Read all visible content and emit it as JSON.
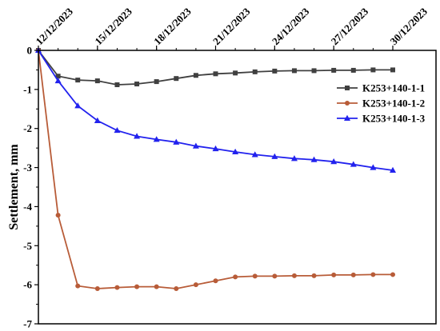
{
  "chart_data": {
    "type": "line",
    "title": "",
    "xlabel": "",
    "ylabel": "Settlement, mm",
    "x_ticks": [
      "12/12/2023",
      "15/12/2023",
      "18/12/2023",
      "21/12/2023",
      "24/12/2023",
      "27/12/2023",
      "30/12/2023"
    ],
    "x_range": [
      "12/12/2023",
      "30/12/2023"
    ],
    "ylim": [
      -7,
      0
    ],
    "y_ticks": [
      0,
      -1,
      -2,
      -3,
      -4,
      -5,
      -6,
      -7
    ],
    "grid": false,
    "legend_position": "top-right",
    "x": [
      "12/12/2023",
      "13/12/2023",
      "14/12/2023",
      "15/12/2023",
      "16/12/2023",
      "17/12/2023",
      "18/12/2023",
      "19/12/2023",
      "20/12/2023",
      "21/12/2023",
      "22/12/2023",
      "23/12/2023",
      "24/12/2023",
      "25/12/2023",
      "26/12/2023",
      "27/12/2023",
      "28/12/2023",
      "29/12/2023",
      "30/12/2023"
    ],
    "series": [
      {
        "name": "K253+140-1-1",
        "color": "#404040",
        "marker": "square",
        "values": [
          0,
          -0.66,
          -0.76,
          -0.78,
          -0.88,
          -0.86,
          -0.8,
          -0.72,
          -0.64,
          -0.6,
          -0.58,
          -0.55,
          -0.53,
          -0.52,
          -0.52,
          -0.51,
          -0.51,
          -0.5,
          -0.5
        ]
      },
      {
        "name": "K253+140-1-2",
        "color": "#b85c38",
        "marker": "circle",
        "values": [
          0,
          -4.22,
          -6.03,
          -6.1,
          -6.07,
          -6.05,
          -6.05,
          -6.1,
          -6.0,
          -5.9,
          -5.8,
          -5.78,
          -5.78,
          -5.77,
          -5.77,
          -5.75,
          -5.75,
          -5.74,
          -5.74
        ]
      },
      {
        "name": "K253+140-1-3",
        "color": "#2222ee",
        "marker": "triangle",
        "values": [
          0,
          -0.78,
          -1.42,
          -1.8,
          -2.05,
          -2.2,
          -2.28,
          -2.35,
          -2.45,
          -2.52,
          -2.6,
          -2.67,
          -2.72,
          -2.77,
          -2.8,
          -2.85,
          -2.92,
          -3.0,
          -3.07
        ]
      }
    ]
  }
}
